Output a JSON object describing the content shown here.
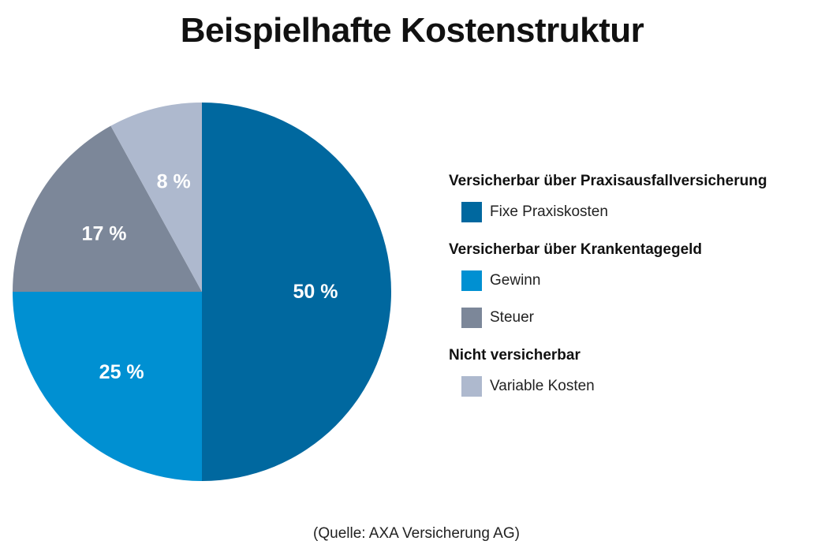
{
  "title": "Beispielhafte Kostenstruktur",
  "source": "(Quelle: AXA Versicherung AG)",
  "chart_data": {
    "type": "pie",
    "title": "Beispielhafte Kostenstruktur",
    "slices": [
      {
        "label": "Fixe Praxiskosten",
        "value": 50,
        "display": "50 %",
        "color": "#00689F"
      },
      {
        "label": "Gewinn",
        "value": 25,
        "display": "25 %",
        "color": "#0090D2"
      },
      {
        "label": "Steuer",
        "value": 17,
        "display": "17 %",
        "color": "#7C8799"
      },
      {
        "label": "Variable Kosten",
        "value": 8,
        "display": "8 %",
        "color": "#AEB9CE"
      }
    ]
  },
  "legend": {
    "groups": [
      {
        "title": "Versicherbar über Praxisausfallversicherung",
        "items": [
          {
            "label": "Fixe Praxiskosten",
            "color": "#00689F"
          }
        ]
      },
      {
        "title": "Versicherbar über Krankentagegeld",
        "items": [
          {
            "label": "Gewinn",
            "color": "#0090D2"
          },
          {
            "label": "Steuer",
            "color": "#7C8799"
          }
        ]
      },
      {
        "title": "Nicht versicherbar",
        "items": [
          {
            "label": "Variable Kosten",
            "color": "#AEB9CE"
          }
        ]
      }
    ]
  }
}
